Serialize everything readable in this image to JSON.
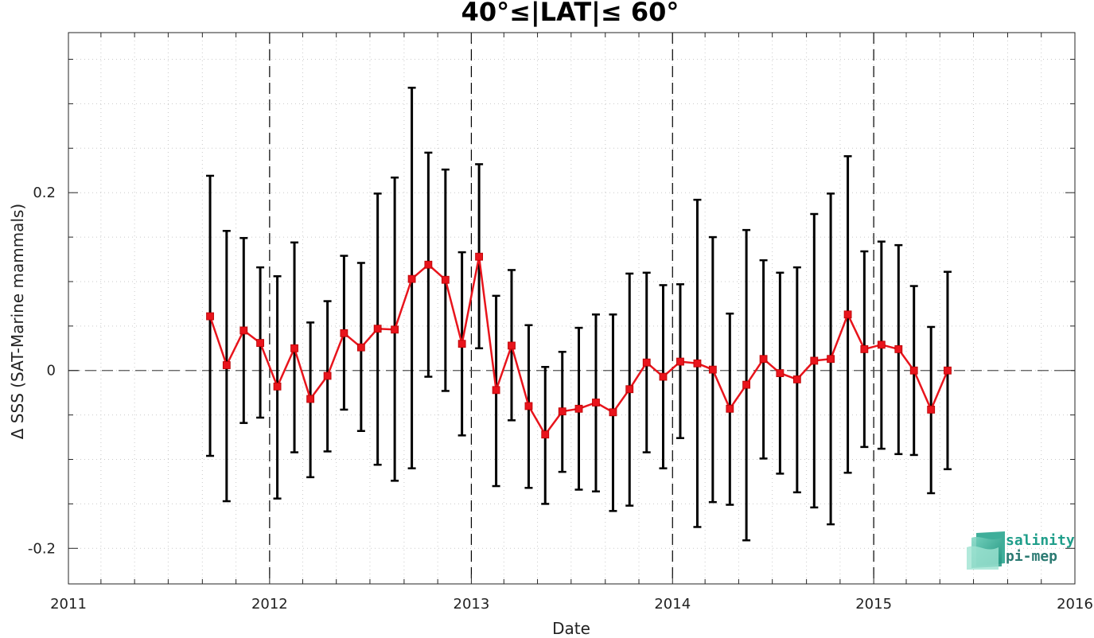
{
  "chart_data": {
    "type": "line",
    "title": "40°≤|LAT|≤ 60°",
    "xlabel": "Date",
    "ylabel": "Δ SSS (SAT-Marine mammals)",
    "xlim": [
      "2011-01-01",
      "2016-01-01"
    ],
    "ylim": [
      -0.24,
      0.38
    ],
    "x_ticks": [
      "2011",
      "2012",
      "2013",
      "2014",
      "2015",
      "2016"
    ],
    "y_ticks": [
      {
        "value": -0.2,
        "label": "-0.2"
      },
      {
        "value": 0,
        "label": "0"
      },
      {
        "value": 0.2,
        "label": "0.2"
      }
    ],
    "grid": true,
    "reference_line": 0,
    "year_lines": [
      "2012",
      "2013",
      "2014",
      "2015"
    ],
    "series": [
      {
        "color": "#e8141c",
        "error_bar_color": "#000000",
        "points": [
          {
            "x": "2011-09",
            "y": 0.061,
            "lo": -0.096,
            "hi": 0.219
          },
          {
            "x": "2011-10",
            "y": 0.006,
            "lo": -0.147,
            "hi": 0.157
          },
          {
            "x": "2011-11",
            "y": 0.045,
            "lo": -0.059,
            "hi": 0.149
          },
          {
            "x": "2011-12",
            "y": 0.031,
            "lo": -0.053,
            "hi": 0.116
          },
          {
            "x": "2012-01",
            "y": -0.018,
            "lo": -0.144,
            "hi": 0.106
          },
          {
            "x": "2012-02",
            "y": 0.025,
            "lo": -0.092,
            "hi": 0.144
          },
          {
            "x": "2012-03",
            "y": -0.032,
            "lo": -0.12,
            "hi": 0.054
          },
          {
            "x": "2012-04",
            "y": -0.006,
            "lo": -0.091,
            "hi": 0.078
          },
          {
            "x": "2012-05",
            "y": 0.042,
            "lo": -0.044,
            "hi": 0.129
          },
          {
            "x": "2012-06",
            "y": 0.026,
            "lo": -0.068,
            "hi": 0.121
          },
          {
            "x": "2012-07",
            "y": 0.047,
            "lo": -0.106,
            "hi": 0.199
          },
          {
            "x": "2012-08",
            "y": 0.046,
            "lo": -0.124,
            "hi": 0.217
          },
          {
            "x": "2012-09",
            "y": 0.103,
            "lo": -0.11,
            "hi": 0.318
          },
          {
            "x": "2012-10",
            "y": 0.119,
            "lo": -0.007,
            "hi": 0.245
          },
          {
            "x": "2012-11",
            "y": 0.102,
            "lo": -0.023,
            "hi": 0.226
          },
          {
            "x": "2012-12",
            "y": 0.03,
            "lo": -0.073,
            "hi": 0.133
          },
          {
            "x": "2013-01",
            "y": 0.128,
            "lo": 0.025,
            "hi": 0.232
          },
          {
            "x": "2013-02",
            "y": -0.022,
            "lo": -0.13,
            "hi": 0.084
          },
          {
            "x": "2013-03",
            "y": 0.028,
            "lo": -0.056,
            "hi": 0.113
          },
          {
            "x": "2013-04",
            "y": -0.04,
            "lo": -0.132,
            "hi": 0.051
          },
          {
            "x": "2013-05",
            "y": -0.072,
            "lo": -0.15,
            "hi": 0.004
          },
          {
            "x": "2013-06",
            "y": -0.046,
            "lo": -0.114,
            "hi": 0.021
          },
          {
            "x": "2013-07",
            "y": -0.043,
            "lo": -0.134,
            "hi": 0.048
          },
          {
            "x": "2013-08",
            "y": -0.036,
            "lo": -0.136,
            "hi": 0.063
          },
          {
            "x": "2013-09",
            "y": -0.047,
            "lo": -0.158,
            "hi": 0.063
          },
          {
            "x": "2013-10",
            "y": -0.021,
            "lo": -0.152,
            "hi": 0.109
          },
          {
            "x": "2013-11",
            "y": 0.009,
            "lo": -0.092,
            "hi": 0.11
          },
          {
            "x": "2013-12",
            "y": -0.007,
            "lo": -0.11,
            "hi": 0.096
          },
          {
            "x": "2014-01",
            "y": 0.01,
            "lo": -0.076,
            "hi": 0.097
          },
          {
            "x": "2014-02",
            "y": 0.008,
            "lo": -0.176,
            "hi": 0.192
          },
          {
            "x": "2014-03",
            "y": 0.001,
            "lo": -0.148,
            "hi": 0.15
          },
          {
            "x": "2014-04",
            "y": -0.043,
            "lo": -0.151,
            "hi": 0.064
          },
          {
            "x": "2014-05",
            "y": -0.016,
            "lo": -0.191,
            "hi": 0.158
          },
          {
            "x": "2014-06",
            "y": 0.013,
            "lo": -0.099,
            "hi": 0.124
          },
          {
            "x": "2014-07",
            "y": -0.003,
            "lo": -0.116,
            "hi": 0.11
          },
          {
            "x": "2014-08",
            "y": -0.01,
            "lo": -0.137,
            "hi": 0.116
          },
          {
            "x": "2014-09",
            "y": 0.011,
            "lo": -0.154,
            "hi": 0.176
          },
          {
            "x": "2014-10",
            "y": 0.013,
            "lo": -0.173,
            "hi": 0.199
          },
          {
            "x": "2014-11",
            "y": 0.063,
            "lo": -0.115,
            "hi": 0.241
          },
          {
            "x": "2014-12",
            "y": 0.024,
            "lo": -0.086,
            "hi": 0.134
          },
          {
            "x": "2015-01",
            "y": 0.029,
            "lo": -0.088,
            "hi": 0.145
          },
          {
            "x": "2015-02",
            "y": 0.024,
            "lo": -0.094,
            "hi": 0.141
          },
          {
            "x": "2015-03",
            "y": 0.0,
            "lo": -0.095,
            "hi": 0.095
          },
          {
            "x": "2015-04",
            "y": -0.044,
            "lo": -0.138,
            "hi": 0.049
          },
          {
            "x": "2015-05",
            "y": 0.0,
            "lo": -0.111,
            "hi": 0.111
          }
        ]
      }
    ]
  },
  "logo": {
    "line1": "salinity",
    "line2": "pi-mep"
  }
}
